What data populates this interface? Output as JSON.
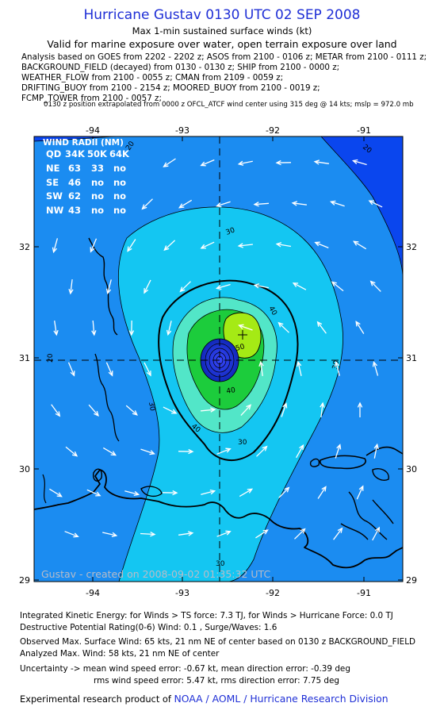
{
  "header": {
    "title": "Hurricane Gustav 0130 UTC 02 SEP 2008",
    "subtitle": "Max 1-min sustained surface winds (kt)",
    "validity": "Valid for marine exposure over water, open terrain exposure over land"
  },
  "analysis_sources": [
    "Analysis based on  GOES from 2202 - 2202 z;  ASOS from 2100 - 0106 z;  METAR from 2100 - 0111 z;",
    "BACKGROUND_FIELD (decayed) from 0130 - 0130 z;  SHIP from 2100 - 0000 z;",
    "WEATHER_FLOW from 2100 - 0055 z;  CMAN from 2109 - 0059 z;",
    "DRIFTING_BUOY from 2100 - 2154 z;  MOORED_BUOY from 2100 - 0019 z;",
    "FCMP_TOWER from 2100 - 0057 z;"
  ],
  "position_note": "0130 z position extrapolated from 0000 z OFCL_ATCF wind center using 315 deg @ 14 kts; mslp = 972.0 mb",
  "map": {
    "lon_labels": [
      "-94",
      "-93",
      "-92",
      "-91"
    ],
    "lat_labels": [
      "32",
      "31",
      "30",
      "29"
    ],
    "lon_range": [
      -94.65,
      -90.55
    ],
    "lat_range": [
      28.98,
      32.97
    ],
    "center": {
      "lon": -92.62,
      "lat": 30.93
    },
    "max_wind_marker": {
      "lon": -92.32,
      "lat": 31.12
    },
    "contour_labels": [
      "20",
      "20",
      "20",
      "30",
      "30",
      "30",
      "30",
      "30",
      "40",
      "40",
      "40",
      "50"
    ],
    "watermark": "Gustav - created on 2008-09-02 01:35:32 UTC",
    "colors": {
      "band_lt20": "#0a46ee",
      "band_20_30": "#1b8cf1",
      "band_30_40": "#14c6f2",
      "band_40_50": "#52e6c8",
      "band_50_60": "#1ccc3c",
      "band_60_70": "#a5ea15",
      "core_blue": "#1830c8"
    }
  },
  "wind_radii": {
    "title": "WIND RADII (NM)",
    "header": [
      "QD",
      "34K",
      "50K",
      "64K"
    ],
    "rows": [
      [
        "NE",
        "63",
        "33",
        "no"
      ],
      [
        "SE",
        "46",
        "no",
        "no"
      ],
      [
        "SW",
        "62",
        "no",
        "no"
      ],
      [
        "NW",
        "43",
        "no",
        "no"
      ]
    ]
  },
  "stats": {
    "ike": "Integrated Kinetic Energy:  for Winds > TS force: 7.3 TJ,  for Winds > Hurricane Force: 0.0 TJ",
    "dpr": "Destructive Potential Rating(0-6)   Wind: 0.1 , Surge/Waves: 1.6",
    "observed_max": "Observed Max. Surface Wind: 65 kts, 21 nm NE of center based on 0130 z BACKGROUND_FIELD",
    "analyzed_max": "Analyzed Max. Wind: 58 kts, 21 nm NE of center",
    "uncertainty_1": "Uncertainty -> mean wind speed error:  -0.67 kt,   mean direction error:  -0.39 deg",
    "uncertainty_2": "rms wind speed error: 5.47 kt,   rms direction error: 7.75 deg"
  },
  "credit": {
    "prefix": "Experimental research product of",
    "link": "NOAA / AOML / Hurricane Research Division"
  }
}
